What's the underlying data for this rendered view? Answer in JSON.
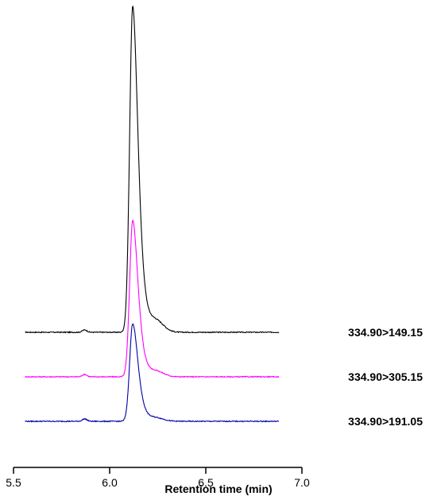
{
  "chart_data": {
    "type": "line",
    "xlabel": "Retention time (min)",
    "ylabel": "",
    "xlim": [
      5.5,
      7.0
    ],
    "xticks": [
      "5.5",
      "6.0",
      "6.5",
      "7.0"
    ],
    "grid": false,
    "x_range": [
      5.56,
      6.88
    ],
    "peak_rt": 6.12,
    "series": [
      {
        "name": "334.90>149.15",
        "color": "#000000",
        "peak_height": 1.0
      },
      {
        "name": "334.90>305.15",
        "color": "#ff00ff",
        "peak_height": 0.48
      },
      {
        "name": "334.90>191.05",
        "color": "#0000aa",
        "peak_height": 0.3
      }
    ]
  }
}
